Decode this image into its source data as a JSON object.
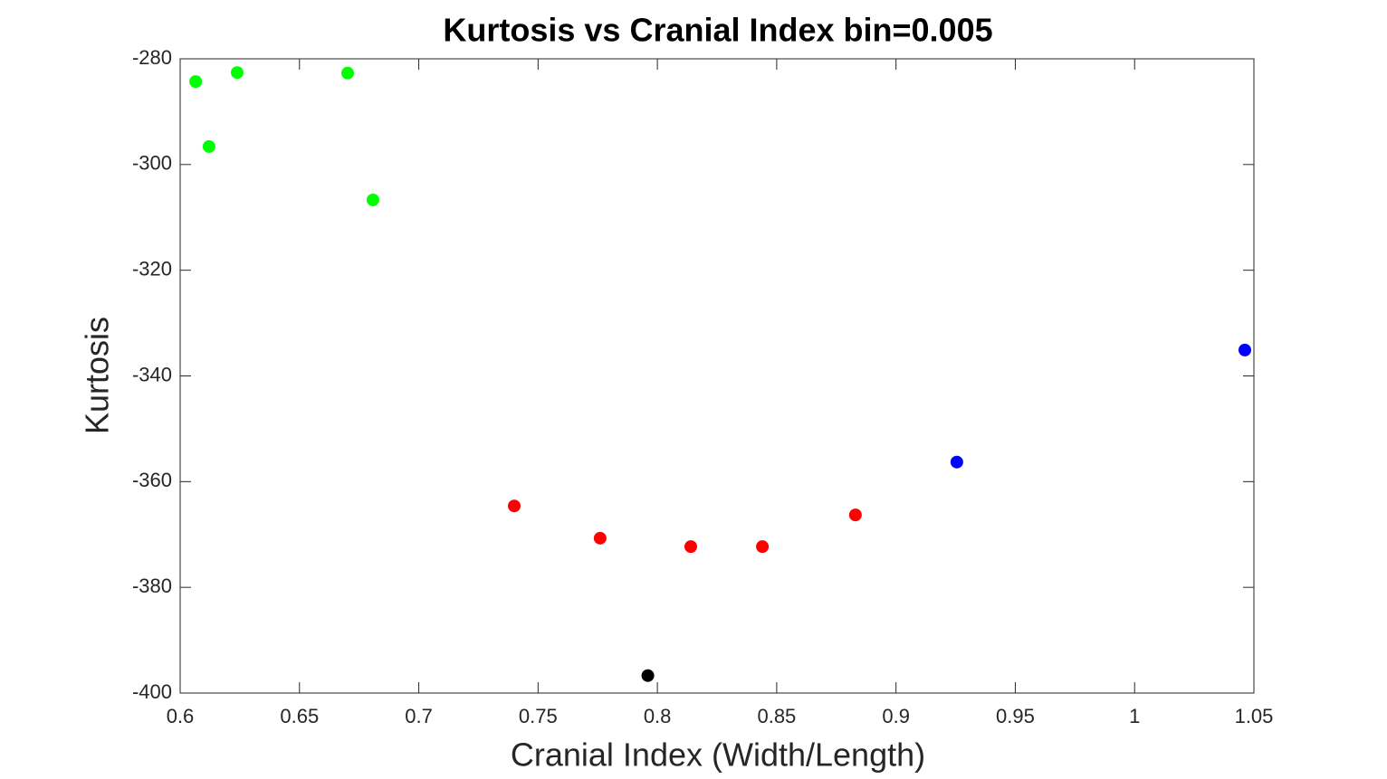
{
  "chart_data": {
    "type": "scatter",
    "title": "Kurtosis vs Cranial Index bin=0.005",
    "x_label": "Cranial Index (Width/Length)",
    "y_label": "Kurtosis",
    "xlim": [
      0.6,
      1.05
    ],
    "ylim": [
      -400,
      -280
    ],
    "xticks": [
      0.6,
      0.65,
      0.7,
      0.75,
      0.8,
      0.85,
      0.9,
      0.95,
      1,
      1.05
    ],
    "yticks": [
      -400,
      -380,
      -360,
      -340,
      -320,
      -300,
      -280
    ],
    "grid": false,
    "series": [
      {
        "color": "#00ff00",
        "x": [
          0.6065,
          0.6121,
          0.6239,
          0.6702,
          0.6808
        ],
        "values": [
          -284.3,
          -296.6,
          -282.6,
          -282.7,
          -306.7
        ]
      },
      {
        "color": "#ff0000",
        "x": [
          0.74,
          0.776,
          0.814,
          0.844,
          0.883
        ],
        "values": [
          -364.6,
          -370.7,
          -372.3,
          -372.3,
          -366.3
        ]
      },
      {
        "color": "#000000",
        "x": [
          0.796
        ],
        "values": [
          -396.7
        ]
      },
      {
        "color": "#0000ff",
        "x": [
          0.9255,
          1.0462
        ],
        "values": [
          -356.3,
          -335.1
        ]
      }
    ]
  }
}
